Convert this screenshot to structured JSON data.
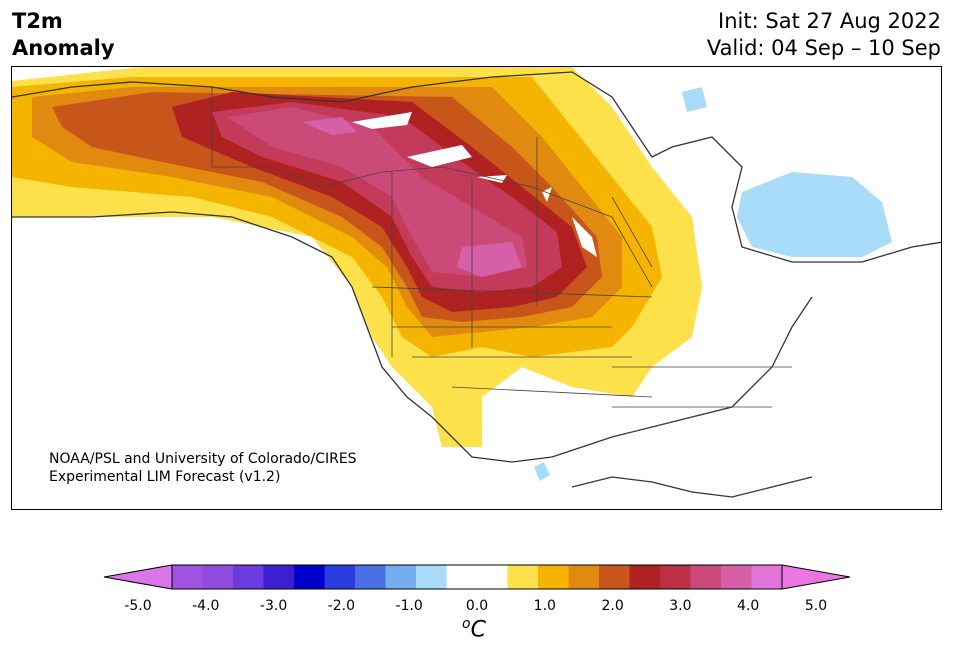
{
  "header": {
    "variable": "T2m",
    "quantity": "Anomaly",
    "init": "Init: Sat 27 Aug 2022",
    "valid": "Valid: 04 Sep – 10 Sep"
  },
  "map": {
    "credit_line1": "NOAA/PSL and University of Colorado/CIRES",
    "credit_line2": "Experimental LIM Forecast (v1.2)",
    "region": "North America",
    "features": {
      "warm_anomaly_center": "Western Canada / Northern Plains",
      "cold_anomaly_center": "Hudson Bay region"
    }
  },
  "colorbar": {
    "unit_base": "C",
    "unit_sup": "o",
    "ticks": [
      "-5.0",
      "-4.0",
      "-3.0",
      "-2.0",
      "-1.0",
      "0.0",
      "1.0",
      "2.0",
      "3.0",
      "4.0",
      "5.0"
    ],
    "tick_values": [
      -5,
      -4,
      -3,
      -2,
      -1,
      0,
      1,
      2,
      3,
      4,
      5
    ],
    "bins": [
      {
        "from": -5.0,
        "to": -4.5,
        "color": "#a052e0"
      },
      {
        "from": -4.5,
        "to": -4.0,
        "color": "#8f4de0"
      },
      {
        "from": -4.0,
        "to": -3.5,
        "color": "#6a3ce0"
      },
      {
        "from": -3.5,
        "to": -3.0,
        "color": "#3a20d0"
      },
      {
        "from": -3.0,
        "to": -2.5,
        "color": "#0000cc"
      },
      {
        "from": -2.5,
        "to": -2.0,
        "color": "#2a3ce0"
      },
      {
        "from": -2.0,
        "to": -1.5,
        "color": "#4a70e6"
      },
      {
        "from": -1.5,
        "to": -1.0,
        "color": "#74aef0"
      },
      {
        "from": -1.0,
        "to": -0.5,
        "color": "#a8dcf8"
      },
      {
        "from": -0.5,
        "to": 0.0,
        "color": "#ffffff"
      },
      {
        "from": 0.0,
        "to": 0.5,
        "color": "#ffffff"
      },
      {
        "from": 0.5,
        "to": 1.0,
        "color": "#fde14a"
      },
      {
        "from": 1.0,
        "to": 1.5,
        "color": "#f4b400"
      },
      {
        "from": 1.5,
        "to": 2.0,
        "color": "#e08a10"
      },
      {
        "from": 2.0,
        "to": 2.5,
        "color": "#c8561a"
      },
      {
        "from": 2.5,
        "to": 3.0,
        "color": "#b02222"
      },
      {
        "from": 3.0,
        "to": 3.5,
        "color": "#bd3044"
      },
      {
        "from": 3.5,
        "to": 4.0,
        "color": "#cc4a78"
      },
      {
        "from": 4.0,
        "to": 4.5,
        "color": "#d660a8"
      },
      {
        "from": 4.5,
        "to": 5.0,
        "color": "#e074d8"
      }
    ],
    "under_color": "#d878e8",
    "over_color": "#e878e0"
  }
}
